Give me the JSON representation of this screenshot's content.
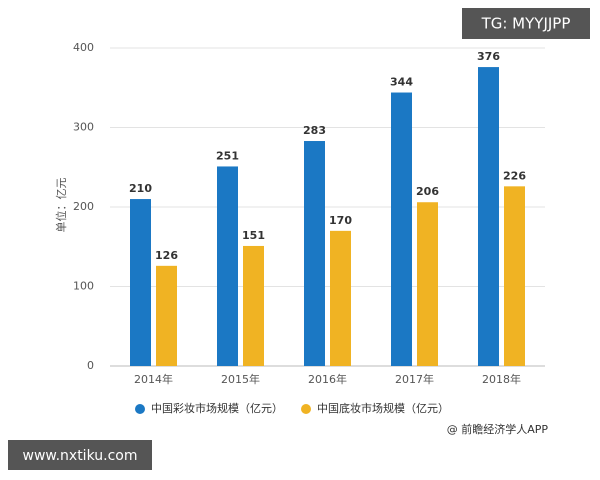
{
  "chart_data": {
    "type": "bar",
    "y_label": "单位：亿元",
    "categories": [
      "2014年",
      "2015年",
      "2016年",
      "2017年",
      "2018年"
    ],
    "series": [
      {
        "name": "中国彩妆市场规模（亿元）",
        "color": "#1b78c4",
        "values": [
          210,
          251,
          283,
          344,
          376
        ]
      },
      {
        "name": "中国底妆市场规模（亿元）",
        "color": "#f0b323",
        "values": [
          126,
          151,
          170,
          206,
          226
        ]
      }
    ],
    "ylim": [
      0,
      400
    ],
    "yticks": [
      0,
      100,
      200,
      300,
      400
    ],
    "grid": true,
    "source": "@ 前瞻经济学人APP",
    "watermarks": [
      "TG: MYYJJPP",
      "www.nxtiku.com"
    ]
  }
}
